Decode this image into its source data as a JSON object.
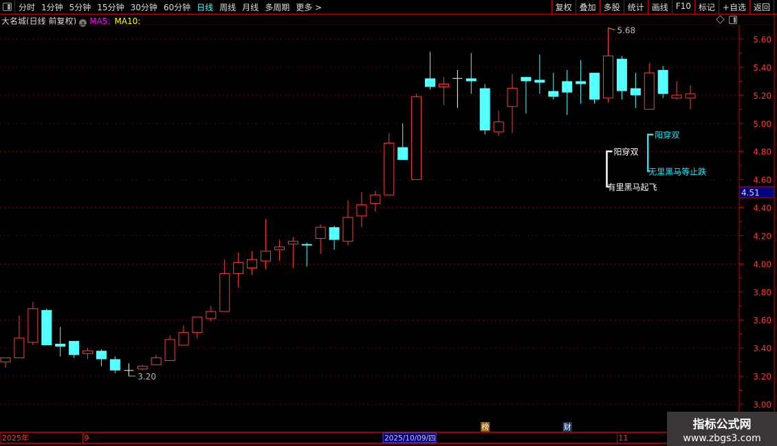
{
  "toolbar": {
    "periods": [
      "分时",
      "1分钟",
      "5分钟",
      "15分钟",
      "30分钟",
      "60分钟",
      "日线",
      "周线",
      "月线",
      "多周期",
      "更多 >"
    ],
    "active_period": "日线",
    "tools": [
      "复权",
      "叠加",
      "多股",
      "统计",
      "画线",
      "F10",
      "标记",
      "+自选",
      "返回"
    ]
  },
  "header": {
    "stock": "大名城(日线 前复权)",
    "ma5": "MA5:",
    "ma10": "MA10:"
  },
  "colors": {
    "up": "#ff3b3b",
    "down": "#54ffff",
    "doji": "#ffffff",
    "grid": "#8b0000",
    "axis": "#cc0000",
    "annotation_white": "#ffffff",
    "annotation_cyan": "#22e5f0"
  },
  "chart_data": {
    "type": "candlestick",
    "ylim": [
      3.0,
      5.6
    ],
    "y_ticks": [
      "5.60",
      "5.40",
      "5.20",
      "5.00",
      "4.80",
      "4.60",
      "4.40",
      "4.20",
      "4.00",
      "3.80",
      "3.60",
      "3.40",
      "3.20",
      "3.00"
    ],
    "grid": true,
    "current_price": "4.51",
    "high_label": "5.68",
    "low_label": "3.20",
    "candles": [
      [
        3.3,
        3.33,
        3.26,
        3.33
      ],
      [
        3.33,
        3.63,
        3.33,
        3.47
      ],
      [
        3.44,
        3.73,
        3.42,
        3.68
      ],
      [
        3.67,
        3.68,
        3.42,
        3.42
      ],
      [
        3.43,
        3.55,
        3.34,
        3.41
      ],
      [
        3.45,
        3.45,
        3.33,
        3.35
      ],
      [
        3.36,
        3.4,
        3.32,
        3.38
      ],
      [
        3.38,
        3.39,
        3.27,
        3.32
      ],
      [
        3.32,
        3.34,
        3.22,
        3.24
      ],
      [
        3.24,
        3.29,
        3.2,
        3.24
      ],
      [
        3.25,
        3.28,
        3.24,
        3.27
      ],
      [
        3.28,
        3.35,
        3.28,
        3.33
      ],
      [
        3.31,
        3.49,
        3.31,
        3.46
      ],
      [
        3.42,
        3.56,
        3.42,
        3.51
      ],
      [
        3.51,
        3.62,
        3.47,
        3.62
      ],
      [
        3.61,
        3.7,
        3.59,
        3.66
      ],
      [
        3.66,
        4.03,
        3.66,
        3.93
      ],
      [
        3.93,
        4.08,
        3.83,
        4.01
      ],
      [
        3.97,
        4.09,
        3.92,
        4.03
      ],
      [
        4.02,
        4.32,
        3.96,
        4.09
      ],
      [
        4.1,
        4.17,
        4.02,
        4.12
      ],
      [
        4.14,
        4.19,
        3.97,
        4.16
      ],
      [
        4.14,
        4.15,
        3.98,
        4.13
      ],
      [
        4.18,
        4.28,
        4.07,
        4.26
      ],
      [
        4.26,
        4.27,
        4.1,
        4.17
      ],
      [
        4.16,
        4.45,
        4.13,
        4.33
      ],
      [
        4.34,
        4.51,
        4.26,
        4.42
      ],
      [
        4.43,
        4.52,
        4.37,
        4.49
      ],
      [
        4.49,
        4.93,
        4.49,
        4.86
      ],
      [
        4.83,
        5.0,
        4.74,
        4.74
      ],
      [
        4.6,
        5.21,
        4.6,
        5.19
      ],
      [
        5.32,
        5.51,
        5.24,
        5.26
      ],
      [
        5.26,
        5.33,
        5.13,
        5.28
      ],
      [
        5.32,
        5.38,
        5.11,
        5.32
      ],
      [
        5.32,
        5.5,
        5.21,
        5.3
      ],
      [
        5.25,
        5.28,
        4.92,
        4.95
      ],
      [
        4.94,
        5.09,
        4.91,
        5.01
      ],
      [
        5.12,
        5.35,
        4.93,
        5.25
      ],
      [
        5.33,
        5.33,
        5.07,
        5.3
      ],
      [
        5.31,
        5.49,
        5.21,
        5.29
      ],
      [
        5.23,
        5.36,
        5.17,
        5.19
      ],
      [
        5.3,
        5.38,
        5.06,
        5.22
      ],
      [
        5.3,
        5.45,
        5.14,
        5.28
      ],
      [
        5.36,
        5.36,
        5.14,
        5.17
      ],
      [
        5.18,
        5.68,
        5.15,
        5.48
      ],
      [
        5.46,
        5.48,
        5.17,
        5.23
      ],
      [
        5.25,
        5.36,
        5.11,
        5.2
      ],
      [
        5.1,
        5.43,
        5.1,
        5.36
      ],
      [
        5.38,
        5.41,
        5.18,
        5.21
      ],
      [
        5.18,
        5.3,
        5.17,
        5.2
      ],
      [
        5.18,
        5.27,
        5.1,
        5.21
      ]
    ],
    "x_labels": [
      {
        "index": 0,
        "text": "2025年"
      },
      {
        "index": 6,
        "text": "9"
      },
      {
        "index": 45,
        "text": "11"
      }
    ],
    "cursor_date": "2025/10/09/四",
    "annotations": [
      {
        "color": "white",
        "top": "阳穿双",
        "bottom": "有里黑马起飞",
        "top_price": 4.8,
        "bottom_price": 4.55,
        "index": 44
      },
      {
        "color": "cyan",
        "top": "阳穿双",
        "bottom": "无里黑马等止跌",
        "top_price": 4.92,
        "bottom_price": 4.66,
        "index": 47
      }
    ],
    "markers": [
      {
        "index": 35,
        "text": "榜",
        "color": "#a05a00"
      },
      {
        "index": 41,
        "text": "财",
        "color": "#1a3a70"
      }
    ]
  },
  "watermark": {
    "line1": "指标公式网",
    "line2": "www.zbgs3.com"
  }
}
